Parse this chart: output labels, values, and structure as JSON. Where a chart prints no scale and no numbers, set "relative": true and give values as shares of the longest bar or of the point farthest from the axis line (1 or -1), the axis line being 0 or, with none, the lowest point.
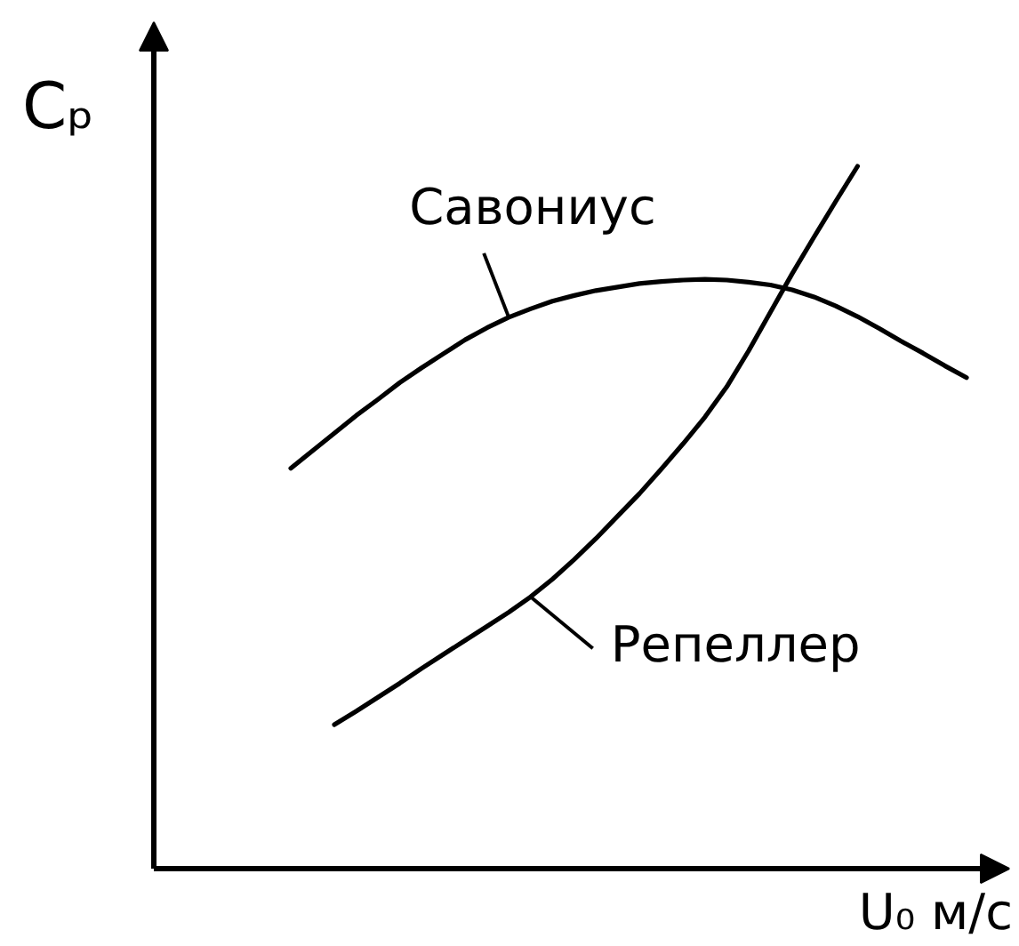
{
  "chart_data": {
    "type": "line",
    "relative": true,
    "ylabel": "Cₚ",
    "xlabel": "U₀ м/с",
    "categories": [
      null,
      null,
      null,
      null,
      null,
      null,
      null,
      null,
      null,
      null,
      null,
      null,
      null,
      null,
      null,
      null,
      null,
      null,
      null,
      null,
      null,
      null,
      null,
      null,
      null,
      null,
      null,
      null,
      null,
      null,
      null,
      null
    ],
    "series": [
      {
        "name": "Савониус",
        "color": "#000000",
        "values": [
          0.57,
          0.595,
          0.62,
          0.645,
          0.668,
          0.692,
          0.713,
          0.733,
          0.753,
          0.77,
          0.785,
          0.797,
          0.808,
          0.816,
          0.823,
          0.828,
          0.833,
          0.836,
          0.838,
          0.839,
          0.838,
          0.835,
          0.831,
          0.824,
          0.814,
          0.801,
          0.786,
          0.769,
          0.751,
          0.734,
          0.716,
          0.699
        ]
      },
      {
        "name": "Репеллер",
        "color": "#000000",
        "values": [
          null,
          null,
          0.205,
          0.224,
          0.244,
          0.264,
          0.285,
          0.305,
          0.325,
          0.345,
          0.365,
          0.387,
          0.412,
          0.44,
          0.47,
          0.502,
          0.534,
          0.569,
          0.605,
          0.643,
          0.686,
          0.737,
          0.792,
          0.847,
          0.899,
          0.95,
          1,
          null,
          null,
          null,
          null,
          null
        ]
      }
    ]
  }
}
